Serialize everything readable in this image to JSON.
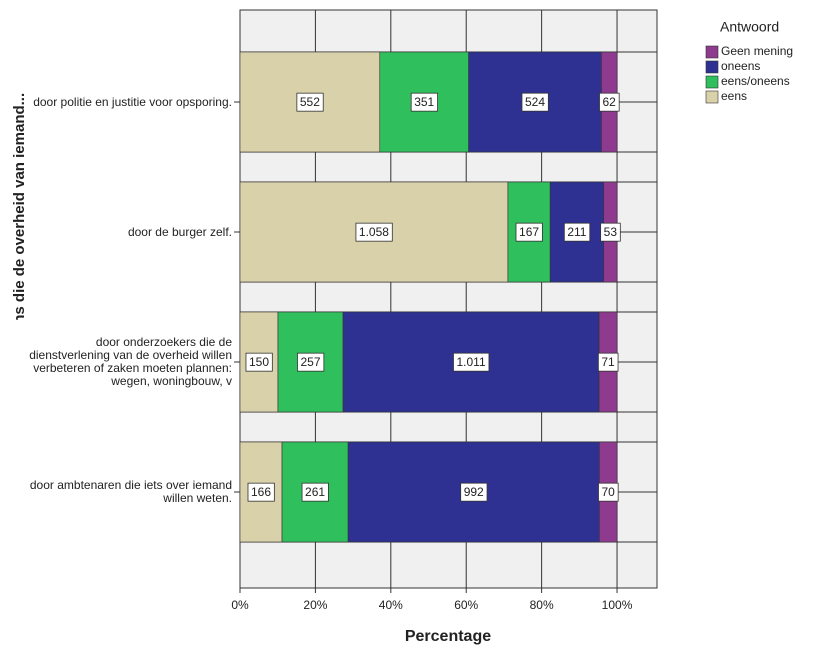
{
  "chart_data": {
    "type": "bar",
    "orientation": "horizontal",
    "stacking": "percent",
    "y_label": "Het is goed als de gegevens die de overheid van iemand...",
    "x_label": "Percentage",
    "legend_title": "Antwoord",
    "legend_position": "right",
    "grid": true,
    "categories": [
      "door politie en justitie voor opsporing.",
      "door de burger zelf.",
      "door onderzoekers die de dienstverlening van de overheid willen verbeteren of zaken moeten plannen: wegen, woningbouw, v",
      "door ambtenaren die iets over iemand willen weten."
    ],
    "series": [
      {
        "name": "eens",
        "color": "#d9d1a9",
        "values": [
          552,
          1058,
          150,
          166
        ],
        "value_labels": [
          "552",
          "1.058",
          "150",
          "166"
        ]
      },
      {
        "name": "eens/oneens",
        "color": "#2fbf5c",
        "values": [
          351,
          167,
          257,
          261
        ],
        "value_labels": [
          "351",
          "167",
          "257",
          "261"
        ]
      },
      {
        "name": "oneens",
        "color": "#2e3192",
        "values": [
          524,
          211,
          1011,
          992
        ],
        "value_labels": [
          "524",
          "211",
          "1.011",
          "992"
        ]
      },
      {
        "name": "Geen mening",
        "color": "#8e3a8e",
        "values": [
          62,
          53,
          71,
          70
        ],
        "value_labels": [
          "62",
          "53",
          "71",
          "70"
        ]
      }
    ],
    "xlim": [
      0,
      110.6
    ],
    "xticks": [
      {
        "value": 0,
        "label": "0%"
      },
      {
        "value": 20,
        "label": "20%"
      },
      {
        "value": 40,
        "label": "40%"
      },
      {
        "value": 60,
        "label": "60%"
      },
      {
        "value": 80,
        "label": "80%"
      },
      {
        "value": 100,
        "label": "100%"
      }
    ]
  }
}
